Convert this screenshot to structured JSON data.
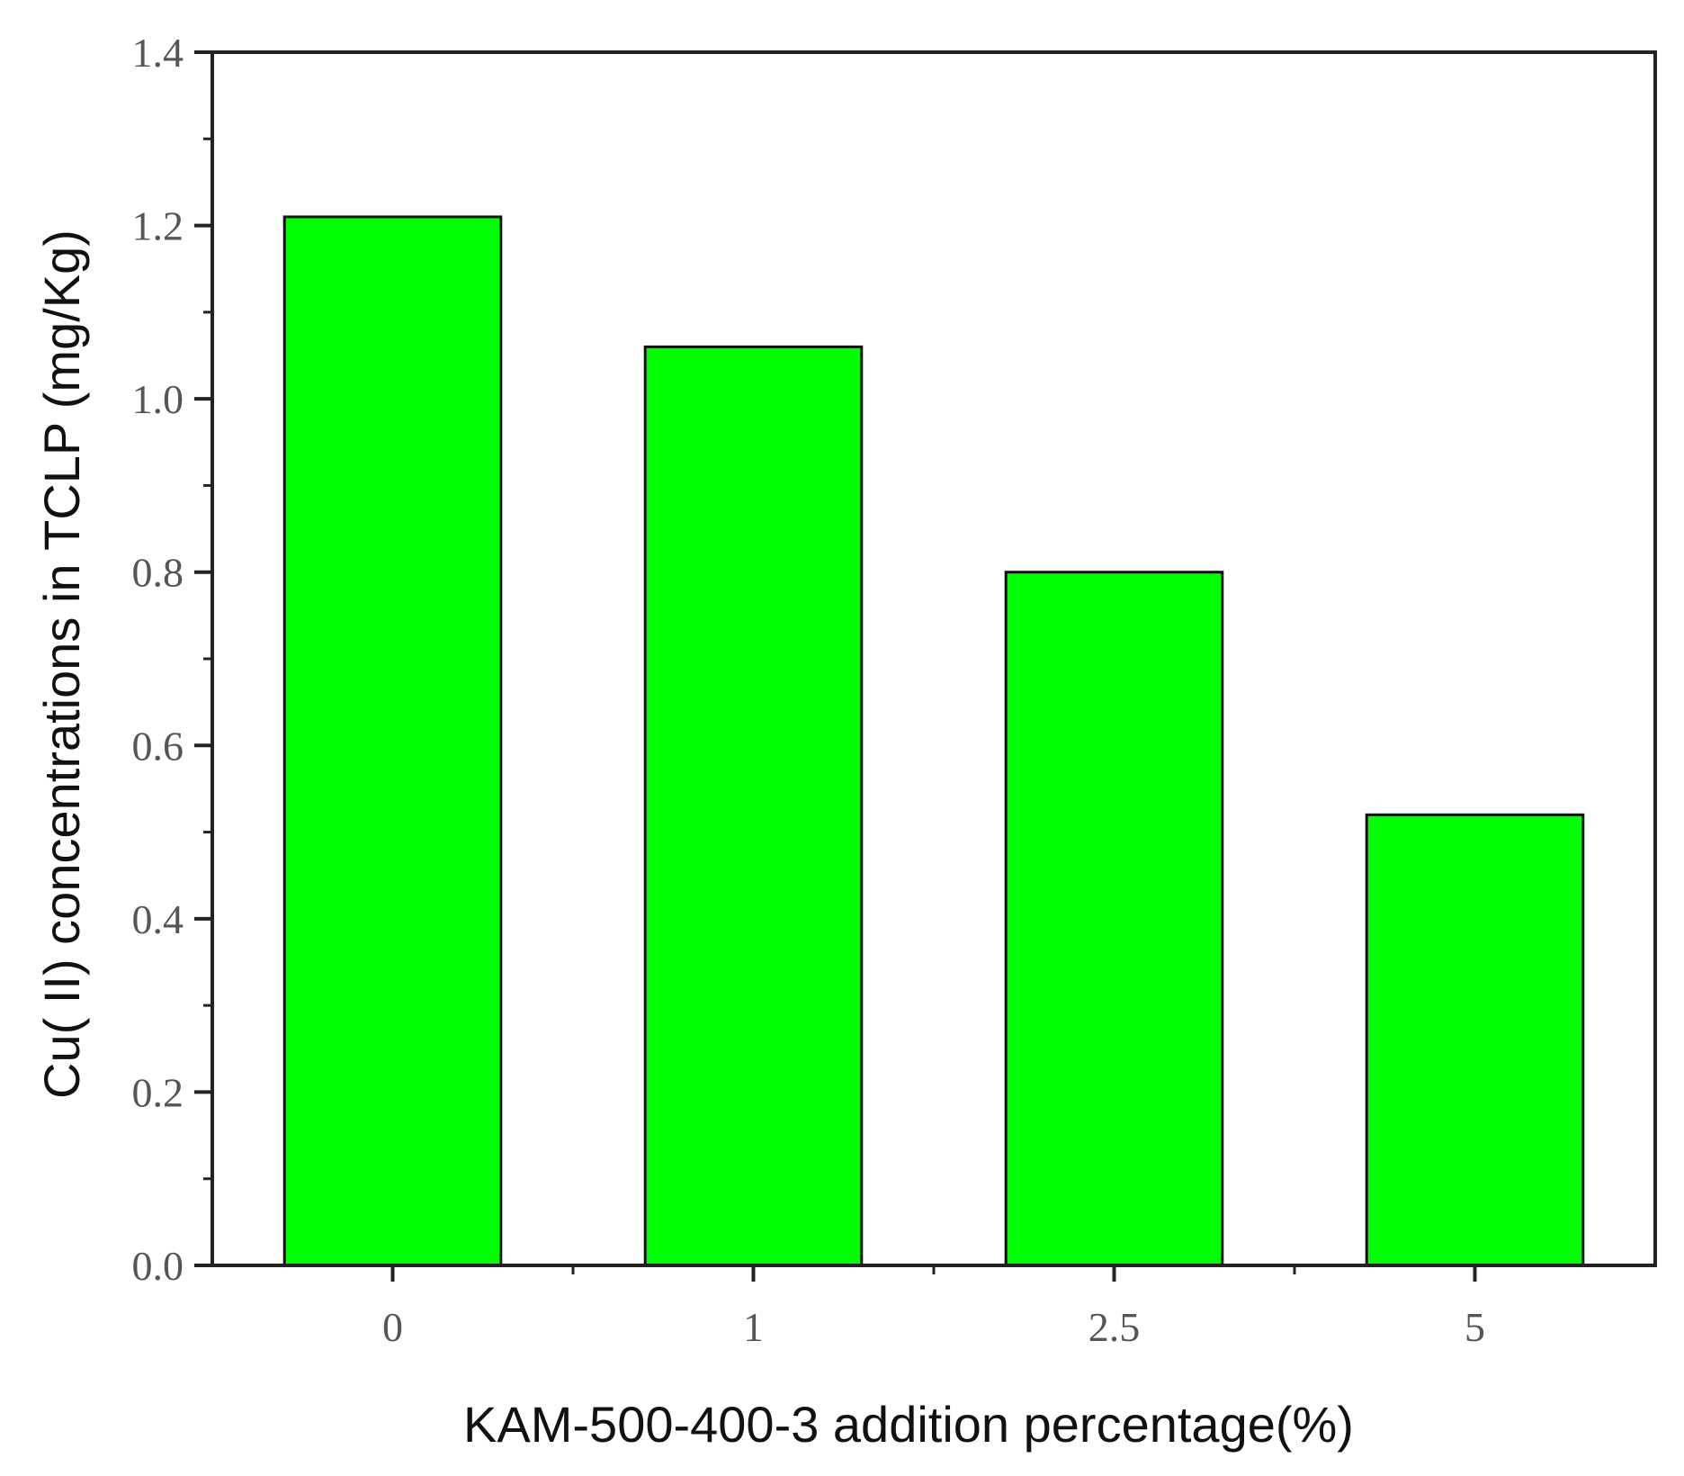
{
  "chart_data": {
    "type": "bar",
    "title": "",
    "xlabel": "KAM-500-400-3 addition percentage(%)",
    "ylabel": "Cu( II) concentrations in TCLP (mg/Kg)",
    "categories": [
      "0",
      "1",
      "2.5",
      "5"
    ],
    "values": [
      1.21,
      1.06,
      0.8,
      0.52
    ],
    "ylim": [
      0,
      1.4
    ],
    "yticks": [
      0.0,
      0.2,
      0.4,
      0.6,
      0.8,
      1.0,
      1.2,
      1.4
    ],
    "ytick_labels": [
      "0.0",
      "0.2",
      "0.4",
      "0.6",
      "0.8",
      "1.0",
      "1.2",
      "1.4"
    ],
    "grid": false,
    "legend": "none",
    "colors": {
      "bar_fill": "#00ff00",
      "bar_stroke": "#111111",
      "axis": "#222222"
    }
  }
}
